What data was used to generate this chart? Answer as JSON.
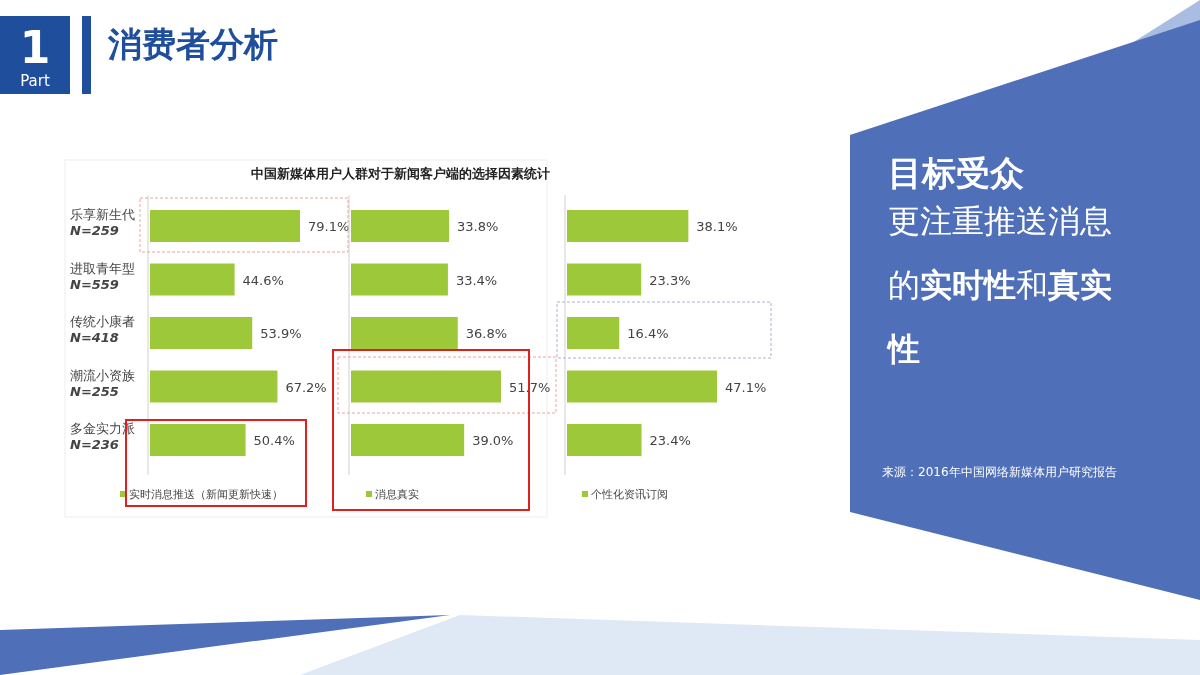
{
  "chart_data": [
    {
      "type": "bar",
      "orientation": "horizontal",
      "title": "中国新媒体用户人群对于新闻客户端的选择因素统计",
      "categories": [
        "乐享新生代\nN=259",
        "进取青年型\nN=559",
        "传统小康者\nN=418",
        "潮流小资族\nN=255",
        "多金实力派\nN=236"
      ],
      "series": [
        {
          "name": "实时消息推送（新闻更新快速）",
          "color": "#9dc83a",
          "values": [
            79.1,
            44.6,
            53.9,
            67.2,
            50.4
          ],
          "value_labels": [
            "79.1%",
            "44.6%",
            "53.9%",
            "67.2%",
            "50.4%"
          ]
        }
      ],
      "legend": "bottom",
      "annotations": [
        "1",
        "Part",
        "消费者分析",
        "目标受众",
        "更注重推送消息的**实时性**和**真实性**",
        "来源：2016年中国网络新媒体用户研究报告"
      ]
    },
    {
      "type": "bar",
      "orientation": "horizontal",
      "categories": [
        null,
        null,
        null,
        null,
        null
      ],
      "series": [
        {
          "name": "消息真实",
          "color": "#9dc83a",
          "values": [
            33.8,
            33.4,
            36.8,
            51.7,
            39.0
          ],
          "value_labels": [
            "33.8%",
            "33.4%",
            "36.8%",
            "51.7%",
            "39.0%"
          ]
        }
      ],
      "legend": "bottom"
    },
    {
      "type": "bar",
      "orientation": "horizontal",
      "categories": [
        null,
        null,
        null,
        null,
        null
      ],
      "series": [
        {
          "name": "个性化资讯订阅",
          "color": "#9dc83a",
          "values": [
            38.1,
            23.3,
            16.4,
            47.1,
            23.4
          ],
          "value_labels": [
            "38.1%",
            "23.3%",
            "16.4%",
            "47.1%",
            "23.4%"
          ]
        }
      ],
      "legend": "bottom"
    }
  ]
}
